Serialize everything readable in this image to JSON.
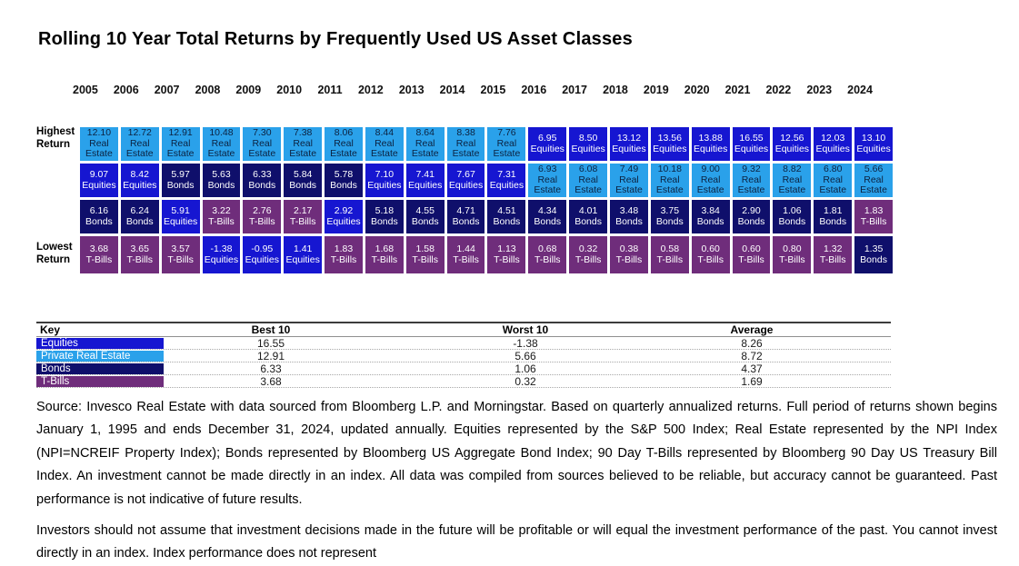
{
  "title": "Rolling 10 Year Total Returns by Frequently Used US Asset Classes",
  "row_labels": {
    "highest": "Highest Return",
    "lowest": "Lowest Return"
  },
  "asset_classes": {
    "equities": {
      "label": "Equities",
      "key_label": "Equities",
      "bg": "#1616D1",
      "fg": "#FFFFFF"
    },
    "real_estate": {
      "label": "Real Estate",
      "key_label": "Private Real Estate",
      "bg": "#2AA1EA",
      "fg": "#0C2240"
    },
    "bonds": {
      "label": "Bonds",
      "key_label": "Bonds",
      "bg": "#0F0F6B",
      "fg": "#FFFFFF"
    },
    "tbills": {
      "label": "T-Bills",
      "key_label": "T-Bills",
      "bg": "#6F2D7B",
      "fg": "#FFFFFF"
    }
  },
  "chart_data": {
    "type": "heatmap",
    "title": "Rolling 10 Year Total Returns by Frequently Used US Asset Classes",
    "years": [
      2005,
      2006,
      2007,
      2008,
      2009,
      2010,
      2011,
      2012,
      2013,
      2014,
      2015,
      2016,
      2017,
      2018,
      2019,
      2020,
      2021,
      2022,
      2023,
      2024
    ],
    "rank_rows": [
      [
        {
          "value": 12.1,
          "asset": "real_estate"
        },
        {
          "value": 12.72,
          "asset": "real_estate"
        },
        {
          "value": 12.91,
          "asset": "real_estate"
        },
        {
          "value": 10.48,
          "asset": "real_estate"
        },
        {
          "value": 7.3,
          "asset": "real_estate"
        },
        {
          "value": 7.38,
          "asset": "real_estate"
        },
        {
          "value": 8.06,
          "asset": "real_estate"
        },
        {
          "value": 8.44,
          "asset": "real_estate"
        },
        {
          "value": 8.64,
          "asset": "real_estate"
        },
        {
          "value": 8.38,
          "asset": "real_estate"
        },
        {
          "value": 7.76,
          "asset": "real_estate"
        },
        {
          "value": 6.95,
          "asset": "equities"
        },
        {
          "value": 8.5,
          "asset": "equities"
        },
        {
          "value": 13.12,
          "asset": "equities"
        },
        {
          "value": 13.56,
          "asset": "equities"
        },
        {
          "value": 13.88,
          "asset": "equities"
        },
        {
          "value": 16.55,
          "asset": "equities"
        },
        {
          "value": 12.56,
          "asset": "equities"
        },
        {
          "value": 12.03,
          "asset": "equities"
        },
        {
          "value": 13.1,
          "asset": "equities"
        }
      ],
      [
        {
          "value": 9.07,
          "asset": "equities"
        },
        {
          "value": 8.42,
          "asset": "equities"
        },
        {
          "value": 5.97,
          "asset": "bonds"
        },
        {
          "value": 5.63,
          "asset": "bonds"
        },
        {
          "value": 6.33,
          "asset": "bonds"
        },
        {
          "value": 5.84,
          "asset": "bonds"
        },
        {
          "value": 5.78,
          "asset": "bonds"
        },
        {
          "value": 7.1,
          "asset": "equities"
        },
        {
          "value": 7.41,
          "asset": "equities"
        },
        {
          "value": 7.67,
          "asset": "equities"
        },
        {
          "value": 7.31,
          "asset": "equities"
        },
        {
          "value": 6.93,
          "asset": "real_estate"
        },
        {
          "value": 6.08,
          "asset": "real_estate"
        },
        {
          "value": 7.49,
          "asset": "real_estate"
        },
        {
          "value": 10.18,
          "asset": "real_estate"
        },
        {
          "value": 9.0,
          "asset": "real_estate"
        },
        {
          "value": 9.32,
          "asset": "real_estate"
        },
        {
          "value": 8.82,
          "asset": "real_estate"
        },
        {
          "value": 6.8,
          "asset": "real_estate"
        },
        {
          "value": 5.66,
          "asset": "real_estate"
        }
      ],
      [
        {
          "value": 6.16,
          "asset": "bonds"
        },
        {
          "value": 6.24,
          "asset": "bonds"
        },
        {
          "value": 5.91,
          "asset": "equities"
        },
        {
          "value": 3.22,
          "asset": "tbills"
        },
        {
          "value": 2.76,
          "asset": "tbills"
        },
        {
          "value": 2.17,
          "asset": "tbills"
        },
        {
          "value": 2.92,
          "asset": "equities"
        },
        {
          "value": 5.18,
          "asset": "bonds"
        },
        {
          "value": 4.55,
          "asset": "bonds"
        },
        {
          "value": 4.71,
          "asset": "bonds"
        },
        {
          "value": 4.51,
          "asset": "bonds"
        },
        {
          "value": 4.34,
          "asset": "bonds"
        },
        {
          "value": 4.01,
          "asset": "bonds"
        },
        {
          "value": 3.48,
          "asset": "bonds"
        },
        {
          "value": 3.75,
          "asset": "bonds"
        },
        {
          "value": 3.84,
          "asset": "bonds"
        },
        {
          "value": 2.9,
          "asset": "bonds"
        },
        {
          "value": 1.06,
          "asset": "bonds"
        },
        {
          "value": 1.81,
          "asset": "bonds"
        },
        {
          "value": 1.83,
          "asset": "tbills"
        }
      ],
      [
        {
          "value": 3.68,
          "asset": "tbills"
        },
        {
          "value": 3.65,
          "asset": "tbills"
        },
        {
          "value": 3.57,
          "asset": "tbills"
        },
        {
          "value": -1.38,
          "asset": "equities"
        },
        {
          "value": -0.95,
          "asset": "equities"
        },
        {
          "value": 1.41,
          "asset": "equities"
        },
        {
          "value": 1.83,
          "asset": "tbills"
        },
        {
          "value": 1.68,
          "asset": "tbills"
        },
        {
          "value": 1.58,
          "asset": "tbills"
        },
        {
          "value": 1.44,
          "asset": "tbills"
        },
        {
          "value": 1.13,
          "asset": "tbills"
        },
        {
          "value": 0.68,
          "asset": "tbills"
        },
        {
          "value": 0.32,
          "asset": "tbills"
        },
        {
          "value": 0.38,
          "asset": "tbills"
        },
        {
          "value": 0.58,
          "asset": "tbills"
        },
        {
          "value": 0.6,
          "asset": "tbills"
        },
        {
          "value": 0.6,
          "asset": "tbills"
        },
        {
          "value": 0.8,
          "asset": "tbills"
        },
        {
          "value": 1.32,
          "asset": "tbills"
        },
        {
          "value": 1.35,
          "asset": "bonds"
        }
      ]
    ],
    "key_table": {
      "headers": [
        "Key",
        "Best 10",
        "Worst 10",
        "Average"
      ],
      "rows": [
        {
          "asset": "equities",
          "best": 16.55,
          "worst": -1.38,
          "average": 8.26
        },
        {
          "asset": "real_estate",
          "best": 12.91,
          "worst": 5.66,
          "average": 8.72
        },
        {
          "asset": "bonds",
          "best": 6.33,
          "worst": 1.06,
          "average": 4.37
        },
        {
          "asset": "tbills",
          "best": 3.68,
          "worst": 0.32,
          "average": 1.69
        }
      ]
    }
  },
  "footnotes": [
    "Source: Invesco Real Estate with data sourced from Bloomberg L.P. and Morningstar. Based on quarterly annualized returns. Full period of returns shown begins January 1, 1995 and ends December 31, 2024, updated annually.  Equities represented by the S&P 500 Index; Real Estate represented by the NPI Index (NPI=NCREIF Property Index); Bonds represented by Bloomberg US Aggregate Bond Index; 90 Day T-Bills represented by Bloomberg 90 Day  US Treasury Bill Index. An investment cannot be made directly in an index. All data was compiled from sources believed to be reliable, but accuracy cannot be guaranteed. Past performance is not indicative of future results.",
    "Investors should not assume that investment decisions made in the future will be profitable or will equal the investment performance of the past. You cannot invest directly in an index. Index performance does not represent"
  ]
}
